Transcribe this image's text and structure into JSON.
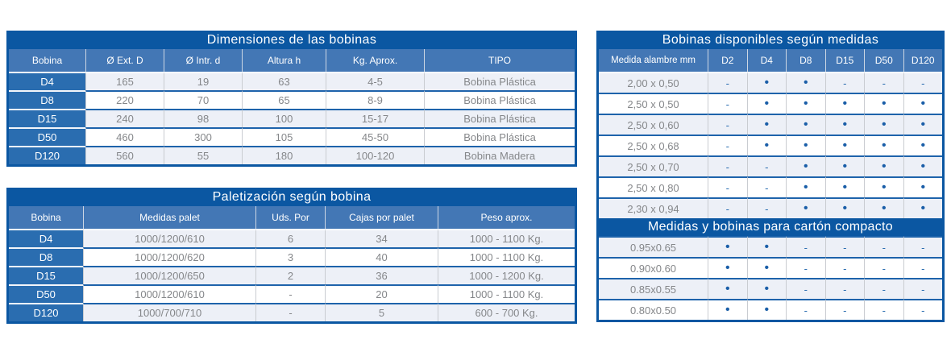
{
  "colors": {
    "accent_dark": "#0b57a2",
    "header_blue": "#4377b5",
    "label_blue": "#2a6db0",
    "row_alt": "#edf0f7",
    "border_blue": "#1e63ab",
    "text_gray": "#85878a",
    "dot_blue": "#1a5ea8"
  },
  "dimensiones": {
    "title": "Dimensiones de las bobinas",
    "columns": [
      "Bobina",
      "Ø  Ext. D",
      "Ø Intr. d",
      "Altura h",
      "Kg. Aprox.",
      "TIPO"
    ],
    "rows": [
      [
        "D4",
        "165",
        "19",
        "63",
        "4-5",
        "Bobina Plástica"
      ],
      [
        "D8",
        "220",
        "70",
        "65",
        "8-9",
        "Bobina Plástica"
      ],
      [
        "D15",
        "240",
        "98",
        "100",
        "15-17",
        "Bobina Plástica"
      ],
      [
        "D50",
        "460",
        "300",
        "105",
        "45-50",
        "Bobina Plástica"
      ],
      [
        "D120",
        "560",
        "55",
        "180",
        "100-120",
        "Bobina Madera"
      ]
    ]
  },
  "paletizacion": {
    "title": "Paletización según bobina",
    "columns": [
      "Bobina",
      "Medidas palet",
      "Uds. Por",
      "Cajas por palet",
      "Peso aprox."
    ],
    "rows": [
      [
        "D4",
        "1000/1200/610",
        "6",
        "34",
        "1000 - 1100 Kg."
      ],
      [
        "D8",
        "1000/1200/620",
        "3",
        "40",
        "1000 - 1100 Kg."
      ],
      [
        "D15",
        "1000/1200/650",
        "2",
        "36",
        "1000 - 1200 Kg."
      ],
      [
        "D50",
        "1000/1200/610",
        "-",
        "20",
        "1000 - 1100 Kg."
      ],
      [
        "D120",
        "1000/700/710",
        "-",
        "5",
        "600 - 700 Kg."
      ]
    ]
  },
  "disponibles": {
    "title": "Bobinas disponibles según medidas",
    "columns": [
      "Medida alambre mm",
      "D2",
      "D4",
      "D8",
      "D15",
      "D50",
      "D120"
    ],
    "rows": [
      [
        "2,00 x 0,50",
        "-",
        "•",
        "•",
        "-",
        "-",
        "-"
      ],
      [
        "2,50 x 0,50",
        "-",
        "•",
        "•",
        "•",
        "•",
        "•"
      ],
      [
        "2,50 x 0,60",
        "-",
        "•",
        "•",
        "•",
        "•",
        "•"
      ],
      [
        "2,50 x 0,68",
        "-",
        "•",
        "•",
        "•",
        "•",
        "•"
      ],
      [
        "2,50 x 0,70",
        "-",
        "-",
        "•",
        "•",
        "•",
        "•"
      ],
      [
        "2,50 x 0,80",
        "-",
        "-",
        "•",
        "•",
        "•",
        "•"
      ],
      [
        "2,30 x 0,94",
        "-",
        "-",
        "•",
        "•",
        "•",
        "•"
      ]
    ],
    "subheader": "Medidas y bobinas para cartón compacto",
    "subrows": [
      [
        "0.95x0.65",
        "•",
        "•",
        "-",
        "-",
        "-",
        "-"
      ],
      [
        "0.90x0.60",
        "•",
        "•",
        "-",
        "-",
        "-",
        "-"
      ],
      [
        "0.85x0.55",
        "•",
        "•",
        "-",
        "-",
        "-",
        "-"
      ],
      [
        "0.80x0.50",
        "•",
        "•",
        "-",
        "-",
        "-",
        "-"
      ]
    ]
  }
}
